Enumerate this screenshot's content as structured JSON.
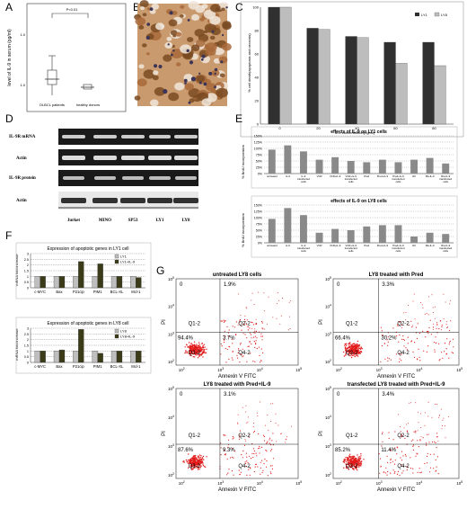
{
  "panels": {
    "A": {
      "label": "A",
      "pvalue": "P<0.01",
      "ylabel": "level of IL-9 in serum (pg/ml)",
      "ytick_top": "1.0",
      "ytick_bottom": "1.0",
      "groups": [
        "DLBCL patients",
        "healthy donors"
      ]
    },
    "B": {
      "label": "B"
    },
    "C": {
      "label": "C",
      "ylabel": "% cell death(apoptosis and necrosis)",
      "xlabel": "IL-9 concentration(ng/ml)",
      "legend": [
        "LY1",
        "LY8"
      ]
    },
    "D": {
      "label": "D",
      "rows": [
        "IL-9R mRNA",
        "Actin",
        "IL-9R protein",
        "Actin"
      ],
      "lanes": [
        "Jurket",
        "MINO",
        "SP53",
        "LY1",
        "LY8"
      ]
    },
    "E": {
      "label": "E",
      "ylabel1": "% BrdU incorporation",
      "ylabel2": "% BrdU incorporation"
    },
    "F": {
      "label": "F",
      "ylabel1": "mRNA fold increase",
      "ylabel2": "mRNA fold increase"
    },
    "G": {
      "label": "G",
      "plots": [
        {
          "title": "untreated LY8 cells",
          "q_ul": "0",
          "q_ur": "1.9%",
          "q_ll": "94.4%",
          "q_lr": "3.7%"
        },
        {
          "title": "LY8 treated with Pred",
          "q_ul": "0",
          "q_ur": "3.3%",
          "q_ll": "66.4%",
          "q_lr": "30.2%"
        },
        {
          "title": "LY8 treated with Pred+IL-9",
          "q_ul": "0",
          "q_ur": "3.1%",
          "q_ll": "87.6%",
          "q_lr": "9.3%"
        },
        {
          "title": "transfected LY8 treated with Pred+IL-9",
          "q_ul": "0",
          "q_ur": "3.4%",
          "q_ll": "85.2%",
          "q_lr": "11.4%"
        }
      ],
      "gate_labels": [
        "Q1-2",
        "Q2-2",
        "Q3-2",
        "Q4-2"
      ],
      "xlabel": "Annexin V FITC",
      "ylabel": "PI",
      "tick_exps": [
        "2",
        "3",
        "4",
        "5"
      ]
    }
  },
  "chart_data": [
    {
      "type": "bar",
      "panel": "C",
      "categories": [
        "0",
        "20",
        "40",
        "60",
        "80"
      ],
      "series": [
        {
          "name": "LY1",
          "values": [
            100,
            82,
            75,
            70,
            70
          ]
        },
        {
          "name": "LY8",
          "values": [
            100,
            81,
            74,
            52,
            50
          ]
        }
      ],
      "ylim": [
        0,
        100
      ],
      "yticks": [
        "0",
        "20",
        "40",
        "60",
        "80",
        "100"
      ],
      "colors": [
        "#303030",
        "#bdbdbd"
      ]
    },
    {
      "type": "bar",
      "panel": "E1",
      "title": "effects of IL-9 on LY1 cells",
      "categories": [
        "untreated",
        "IL-9",
        "IL-9 transfected cells",
        "VCR",
        "VCR+IL-9",
        "VCR+IL-9 transfected cells",
        "Pred",
        "Pred+IL-9",
        "Pred+IL-9 transfected cells",
        "Rit",
        "Rit+IL-9",
        "Rit+IL-9 transfected cells"
      ],
      "values": [
        95,
        112,
        88,
        55,
        65,
        50,
        45,
        55,
        45,
        55,
        62,
        40
      ],
      "ylim": [
        0,
        150
      ],
      "yticks": [
        "0%",
        "25%",
        "50%",
        "75%",
        "100%",
        "125%",
        "150%"
      ],
      "colors": [
        "#8a8a8a"
      ]
    },
    {
      "type": "bar",
      "panel": "E2",
      "title": "effects of IL-9 on LY8 cells",
      "categories": [
        "untreated",
        "IL-9",
        "IL-9 transfected cells",
        "VCR",
        "VCR+IL-9",
        "VCR+IL-9 transfected cells",
        "Pred",
        "Pred+IL-9",
        "Pred+IL-9 transfected cells",
        "Rit",
        "Rit+IL-9",
        "Rit+IL-9 transfected cells"
      ],
      "values": [
        95,
        138,
        110,
        40,
        55,
        50,
        65,
        70,
        70,
        25,
        40,
        35
      ],
      "ylim": [
        0,
        150
      ],
      "yticks": [
        "0%",
        "25%",
        "50%",
        "75%",
        "100%",
        "125%",
        "150%"
      ],
      "colors": [
        "#8a8a8a"
      ]
    },
    {
      "type": "bar",
      "panel": "F1",
      "title": "Expression of apoptotic genes in LY1 cell",
      "categories": [
        "c-MYC",
        "Bax",
        "P21cip",
        "PIM1",
        "BCL-XL",
        "Mcl-1"
      ],
      "series": [
        {
          "name": "LY1",
          "values": [
            1,
            1,
            1,
            1,
            1,
            1
          ]
        },
        {
          "name": "LY1+IL-9",
          "values": [
            1,
            1,
            2.3,
            2.1,
            1,
            0.9
          ]
        }
      ],
      "ylim": [
        0,
        3
      ],
      "yticks": [
        "0",
        "0.5",
        "1",
        "1.5",
        "2",
        "2.5",
        "3"
      ],
      "colors": [
        "#bfbfbf",
        "#3b3b1a"
      ]
    },
    {
      "type": "bar",
      "panel": "F2",
      "title": "Expression of apoptotic genes in LY8 cell",
      "categories": [
        "c-MYC",
        "Bax",
        "P21cip",
        "PIM1",
        "BCL-XL",
        "Mcl-1"
      ],
      "series": [
        {
          "name": "LY8",
          "values": [
            1,
            1,
            1,
            1,
            1,
            1
          ]
        },
        {
          "name": "LY8+IL-9",
          "values": [
            1,
            1.1,
            2.9,
            0.8,
            1,
            1
          ]
        }
      ],
      "ylim": [
        0,
        3
      ],
      "yticks": [
        "0",
        "0.5",
        "1",
        "1.5",
        "2",
        "2.5",
        "3"
      ],
      "colors": [
        "#bfbfbf",
        "#3b3b1a"
      ]
    }
  ]
}
